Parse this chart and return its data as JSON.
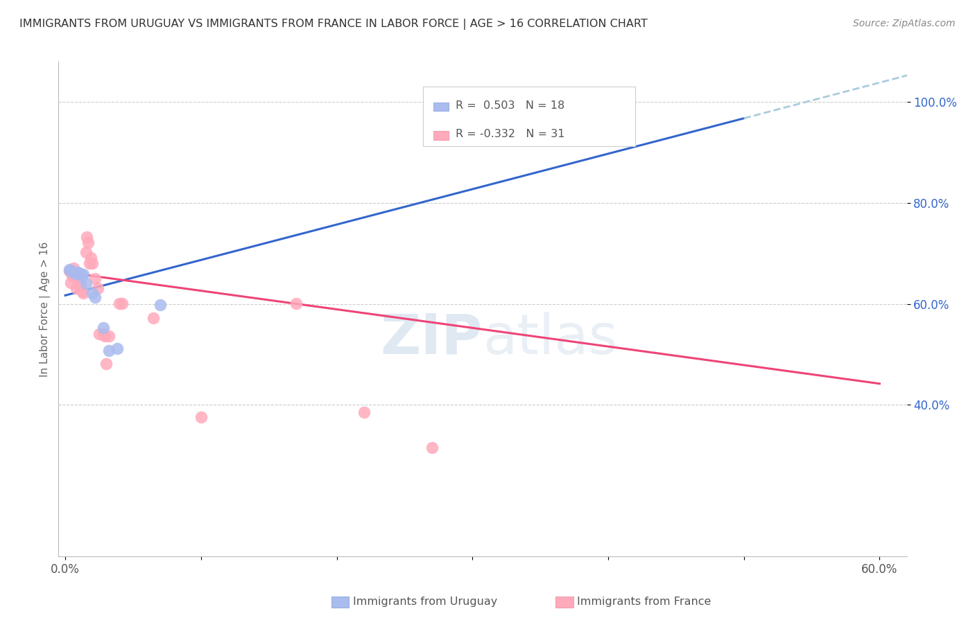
{
  "title": "IMMIGRANTS FROM URUGUAY VS IMMIGRANTS FROM FRANCE IN LABOR FORCE | AGE > 16 CORRELATION CHART",
  "source": "Source: ZipAtlas.com",
  "ylabel": "In Labor Force | Age > 16",
  "xlim": [
    -0.005,
    0.62
  ],
  "ylim": [
    0.1,
    1.08
  ],
  "yticks": [
    0.4,
    0.6,
    0.8,
    1.0
  ],
  "xticks": [
    0.0,
    0.1,
    0.2,
    0.3,
    0.4,
    0.5,
    0.6
  ],
  "xtick_labels": [
    "0.0%",
    "",
    "",
    "",
    "",
    "",
    "60.0%"
  ],
  "ytick_labels": [
    "40.0%",
    "60.0%",
    "80.0%",
    "100.0%"
  ],
  "uruguay_color": "#aabbee",
  "france_color": "#ffaabb",
  "blue_line_color": "#3366cc",
  "pink_line_color": "#ee4477",
  "dashed_line_color": "#aaccdd",
  "watermark_zip": "ZIP",
  "watermark_atlas": "atlas",
  "uruguay_points": [
    [
      0.003,
      0.668
    ],
    [
      0.004,
      0.666
    ],
    [
      0.005,
      0.664
    ],
    [
      0.006,
      0.663
    ],
    [
      0.007,
      0.661
    ],
    [
      0.008,
      0.66
    ],
    [
      0.009,
      0.663
    ],
    [
      0.01,
      0.662
    ],
    [
      0.011,
      0.659
    ],
    [
      0.012,
      0.656
    ],
    [
      0.013,
      0.658
    ],
    [
      0.015,
      0.641
    ],
    [
      0.02,
      0.621
    ],
    [
      0.022,
      0.614
    ],
    [
      0.028,
      0.553
    ],
    [
      0.032,
      0.508
    ],
    [
      0.038,
      0.512
    ],
    [
      0.07,
      0.598
    ]
  ],
  "france_points": [
    [
      0.003,
      0.666
    ],
    [
      0.004,
      0.642
    ],
    [
      0.005,
      0.656
    ],
    [
      0.006,
      0.671
    ],
    [
      0.007,
      0.661
    ],
    [
      0.008,
      0.631
    ],
    [
      0.009,
      0.646
    ],
    [
      0.01,
      0.636
    ],
    [
      0.011,
      0.641
    ],
    [
      0.012,
      0.626
    ],
    [
      0.013,
      0.621
    ],
    [
      0.015,
      0.703
    ],
    [
      0.016,
      0.733
    ],
    [
      0.017,
      0.722
    ],
    [
      0.018,
      0.681
    ],
    [
      0.019,
      0.692
    ],
    [
      0.02,
      0.681
    ],
    [
      0.022,
      0.651
    ],
    [
      0.024,
      0.631
    ],
    [
      0.025,
      0.541
    ],
    [
      0.028,
      0.541
    ],
    [
      0.029,
      0.536
    ],
    [
      0.03,
      0.481
    ],
    [
      0.032,
      0.536
    ],
    [
      0.04,
      0.601
    ],
    [
      0.042,
      0.601
    ],
    [
      0.065,
      0.572
    ],
    [
      0.1,
      0.376
    ],
    [
      0.17,
      0.601
    ],
    [
      0.22,
      0.385
    ],
    [
      0.27,
      0.315
    ]
  ],
  "blue_line": {
    "x": [
      0.0,
      0.5
    ],
    "y": [
      0.617,
      0.968
    ]
  },
  "blue_dashed": {
    "x": [
      0.5,
      0.63
    ],
    "y": [
      0.968,
      1.06
    ]
  },
  "pink_line": {
    "x": [
      0.0,
      0.6
    ],
    "y": [
      0.663,
      0.442
    ]
  }
}
